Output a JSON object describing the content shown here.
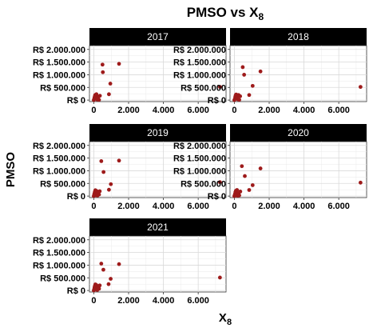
{
  "chart_data": {
    "type": "scatter",
    "title": "PMSO vs X",
    "title_subscript": "8",
    "xlabel": "X",
    "xlabel_subscript": "8",
    "ylabel": "PMSO",
    "xlim": [
      -250,
      7600
    ],
    "ylim": [
      -60000,
      2150000
    ],
    "x_ticks": [
      0,
      2000,
      4000,
      6000
    ],
    "x_tick_labels": [
      "0",
      "2.000",
      "4.000",
      "6.000"
    ],
    "y_ticks": [
      0,
      500000,
      1000000,
      1500000,
      2000000
    ],
    "y_tick_labels": [
      "R$ 0",
      "R$ 500.000",
      "R$ 1.000.000",
      "R$ 1.500.000",
      "R$ 2.000.000"
    ],
    "grid": true,
    "point_color": "#9e1b1b",
    "strip_color": "#000000",
    "panels": [
      {
        "label": "2017",
        "points": [
          {
            "x": 0,
            "y": 0
          },
          {
            "x": 20,
            "y": 40000
          },
          {
            "x": 40,
            "y": 100000
          },
          {
            "x": 60,
            "y": 150000
          },
          {
            "x": 80,
            "y": 200000
          },
          {
            "x": 120,
            "y": 60000
          },
          {
            "x": 150,
            "y": 230000
          },
          {
            "x": 200,
            "y": 20000
          },
          {
            "x": 250,
            "y": 120000
          },
          {
            "x": 300,
            "y": 10000
          },
          {
            "x": 350,
            "y": 170000
          },
          {
            "x": 500,
            "y": 1400000
          },
          {
            "x": 520,
            "y": 1100000
          },
          {
            "x": 950,
            "y": 650000
          },
          {
            "x": 870,
            "y": 230000
          },
          {
            "x": 1450,
            "y": 1430000
          },
          {
            "x": 7250,
            "y": 520000
          }
        ]
      },
      {
        "label": "2018",
        "points": [
          {
            "x": 0,
            "y": 0
          },
          {
            "x": 30,
            "y": 50000
          },
          {
            "x": 50,
            "y": 120000
          },
          {
            "x": 70,
            "y": 180000
          },
          {
            "x": 100,
            "y": 220000
          },
          {
            "x": 130,
            "y": 80000
          },
          {
            "x": 160,
            "y": 140000
          },
          {
            "x": 200,
            "y": 30000
          },
          {
            "x": 240,
            "y": 200000
          },
          {
            "x": 280,
            "y": 10000
          },
          {
            "x": 330,
            "y": 150000
          },
          {
            "x": 480,
            "y": 1300000
          },
          {
            "x": 560,
            "y": 1000000
          },
          {
            "x": 1050,
            "y": 560000
          },
          {
            "x": 850,
            "y": 200000
          },
          {
            "x": 1500,
            "y": 1130000
          },
          {
            "x": 7250,
            "y": 520000
          }
        ]
      },
      {
        "label": "2019",
        "points": [
          {
            "x": 0,
            "y": 0
          },
          {
            "x": 20,
            "y": 60000
          },
          {
            "x": 40,
            "y": 110000
          },
          {
            "x": 60,
            "y": 170000
          },
          {
            "x": 90,
            "y": 230000
          },
          {
            "x": 120,
            "y": 40000
          },
          {
            "x": 160,
            "y": 200000
          },
          {
            "x": 210,
            "y": 20000
          },
          {
            "x": 250,
            "y": 130000
          },
          {
            "x": 300,
            "y": 60000
          },
          {
            "x": 340,
            "y": 190000
          },
          {
            "x": 430,
            "y": 1380000
          },
          {
            "x": 560,
            "y": 950000
          },
          {
            "x": 980,
            "y": 470000
          },
          {
            "x": 870,
            "y": 250000
          },
          {
            "x": 1450,
            "y": 1400000
          },
          {
            "x": 7250,
            "y": 550000
          }
        ]
      },
      {
        "label": "2020",
        "points": [
          {
            "x": 0,
            "y": 0
          },
          {
            "x": 20,
            "y": 40000
          },
          {
            "x": 40,
            "y": 90000
          },
          {
            "x": 60,
            "y": 160000
          },
          {
            "x": 90,
            "y": 210000
          },
          {
            "x": 120,
            "y": 60000
          },
          {
            "x": 150,
            "y": 240000
          },
          {
            "x": 190,
            "y": 10000
          },
          {
            "x": 240,
            "y": 110000
          },
          {
            "x": 280,
            "y": 30000
          },
          {
            "x": 340,
            "y": 180000
          },
          {
            "x": 430,
            "y": 1180000
          },
          {
            "x": 600,
            "y": 790000
          },
          {
            "x": 1050,
            "y": 430000
          },
          {
            "x": 850,
            "y": 240000
          },
          {
            "x": 1500,
            "y": 1090000
          },
          {
            "x": 7250,
            "y": 530000
          }
        ]
      },
      {
        "label": "2021",
        "points": [
          {
            "x": 0,
            "y": 0
          },
          {
            "x": 20,
            "y": 50000
          },
          {
            "x": 40,
            "y": 120000
          },
          {
            "x": 60,
            "y": 180000
          },
          {
            "x": 90,
            "y": 240000
          },
          {
            "x": 120,
            "y": 50000
          },
          {
            "x": 150,
            "y": 210000
          },
          {
            "x": 200,
            "y": 20000
          },
          {
            "x": 240,
            "y": 140000
          },
          {
            "x": 300,
            "y": 70000
          },
          {
            "x": 340,
            "y": 200000
          },
          {
            "x": 430,
            "y": 1060000
          },
          {
            "x": 550,
            "y": 820000
          },
          {
            "x": 970,
            "y": 460000
          },
          {
            "x": 850,
            "y": 250000
          },
          {
            "x": 1450,
            "y": 1040000
          },
          {
            "x": 7250,
            "y": 510000
          }
        ]
      }
    ]
  }
}
